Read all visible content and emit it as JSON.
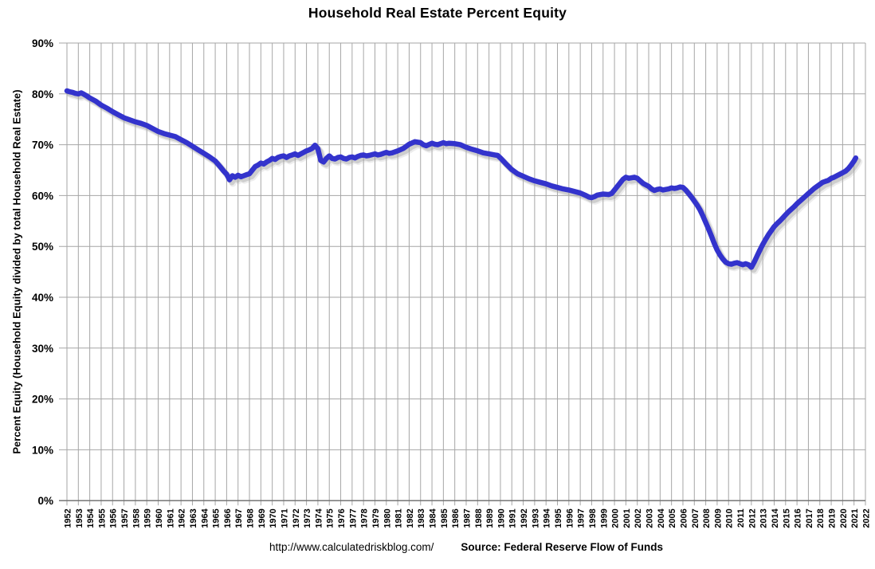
{
  "footer": {
    "url": "http://www.calculatedriskblog.com/",
    "source": "Source: Federal Reserve Flow of Funds"
  },
  "colors": {
    "line": "#3333CC",
    "shadow": "#9A9A9A",
    "grid": "#A6A6A6",
    "axis": "#6E6E6E",
    "text": "#000000",
    "background": "#FFFFFF"
  },
  "chart_data": {
    "type": "line",
    "title": "Household Real Estate Percent Equity",
    "xlabel": "",
    "ylabel": "Percent Equity (Household Equity divided by total Household Real Estate)",
    "xlim": [
      1952,
      2022
    ],
    "ylim": [
      0,
      90
    ],
    "grid": true,
    "legend_position": "none",
    "x_ticks": [
      1952,
      1953,
      1954,
      1955,
      1956,
      1957,
      1958,
      1959,
      1960,
      1961,
      1962,
      1963,
      1964,
      1965,
      1966,
      1967,
      1968,
      1969,
      1970,
      1971,
      1972,
      1973,
      1974,
      1975,
      1976,
      1977,
      1978,
      1979,
      1980,
      1981,
      1982,
      1983,
      1984,
      1985,
      1986,
      1987,
      1988,
      1989,
      1990,
      1991,
      1992,
      1993,
      1994,
      1995,
      1996,
      1997,
      1998,
      1999,
      2000,
      2001,
      2002,
      2003,
      2004,
      2005,
      2006,
      2007,
      2008,
      2009,
      2010,
      2011,
      2012,
      2013,
      2014,
      2015,
      2016,
      2017,
      2018,
      2019,
      2020,
      2021,
      2022
    ],
    "y_ticks": [
      {
        "value": 0,
        "label": "0%"
      },
      {
        "value": 10,
        "label": "10%"
      },
      {
        "value": 20,
        "label": "20%"
      },
      {
        "value": 30,
        "label": "30%"
      },
      {
        "value": 40,
        "label": "40%"
      },
      {
        "value": 50,
        "label": "50%"
      },
      {
        "value": 60,
        "label": "60%"
      },
      {
        "value": 70,
        "label": "70%"
      },
      {
        "value": 80,
        "label": "80%"
      },
      {
        "value": 90,
        "label": "90%"
      }
    ],
    "series": [
      {
        "name": "Household Real Estate Percent Equity",
        "color": "#3333CC",
        "points": [
          [
            1952.0,
            80.6
          ],
          [
            1952.25,
            80.4
          ],
          [
            1952.5,
            80.3
          ],
          [
            1952.75,
            80.1
          ],
          [
            1953.0,
            80.0
          ],
          [
            1953.25,
            80.2
          ],
          [
            1953.5,
            79.9
          ],
          [
            1953.75,
            79.6
          ],
          [
            1954.0,
            79.2
          ],
          [
            1954.5,
            78.6
          ],
          [
            1955.0,
            77.8
          ],
          [
            1955.5,
            77.2
          ],
          [
            1956.0,
            76.5
          ],
          [
            1956.5,
            75.9
          ],
          [
            1957.0,
            75.3
          ],
          [
            1957.5,
            74.9
          ],
          [
            1958.0,
            74.5
          ],
          [
            1958.5,
            74.2
          ],
          [
            1959.0,
            73.8
          ],
          [
            1959.5,
            73.2
          ],
          [
            1960.0,
            72.6
          ],
          [
            1960.5,
            72.2
          ],
          [
            1961.0,
            71.9
          ],
          [
            1961.5,
            71.6
          ],
          [
            1962.0,
            71.0
          ],
          [
            1962.5,
            70.4
          ],
          [
            1963.0,
            69.7
          ],
          [
            1963.5,
            69.0
          ],
          [
            1964.0,
            68.3
          ],
          [
            1964.5,
            67.6
          ],
          [
            1965.0,
            66.8
          ],
          [
            1965.5,
            65.5
          ],
          [
            1965.75,
            64.8
          ],
          [
            1966.0,
            64.2
          ],
          [
            1966.25,
            63.1
          ],
          [
            1966.5,
            63.9
          ],
          [
            1966.75,
            63.6
          ],
          [
            1967.0,
            64.0
          ],
          [
            1967.25,
            63.7
          ],
          [
            1967.5,
            63.9
          ],
          [
            1967.75,
            64.1
          ],
          [
            1968.0,
            64.3
          ],
          [
            1968.25,
            65.0
          ],
          [
            1968.5,
            65.7
          ],
          [
            1968.75,
            66.0
          ],
          [
            1969.0,
            66.4
          ],
          [
            1969.25,
            66.2
          ],
          [
            1969.5,
            66.6
          ],
          [
            1969.75,
            66.9
          ],
          [
            1970.0,
            67.3
          ],
          [
            1970.25,
            67.1
          ],
          [
            1970.5,
            67.5
          ],
          [
            1970.75,
            67.7
          ],
          [
            1971.0,
            67.8
          ],
          [
            1971.25,
            67.5
          ],
          [
            1971.5,
            67.8
          ],
          [
            1971.75,
            68.0
          ],
          [
            1972.0,
            68.2
          ],
          [
            1972.25,
            67.9
          ],
          [
            1972.5,
            68.2
          ],
          [
            1972.75,
            68.5
          ],
          [
            1973.0,
            68.8
          ],
          [
            1973.25,
            69.0
          ],
          [
            1973.5,
            69.3
          ],
          [
            1973.75,
            69.9
          ],
          [
            1974.0,
            69.2
          ],
          [
            1974.25,
            66.9
          ],
          [
            1974.5,
            66.6
          ],
          [
            1974.75,
            67.3
          ],
          [
            1975.0,
            67.8
          ],
          [
            1975.25,
            67.3
          ],
          [
            1975.5,
            67.2
          ],
          [
            1975.75,
            67.5
          ],
          [
            1976.0,
            67.6
          ],
          [
            1976.25,
            67.3
          ],
          [
            1976.5,
            67.2
          ],
          [
            1976.75,
            67.5
          ],
          [
            1977.0,
            67.6
          ],
          [
            1977.25,
            67.4
          ],
          [
            1977.5,
            67.7
          ],
          [
            1977.75,
            67.9
          ],
          [
            1978.0,
            68.0
          ],
          [
            1978.25,
            67.8
          ],
          [
            1978.5,
            67.9
          ],
          [
            1979.0,
            68.2
          ],
          [
            1979.25,
            68.0
          ],
          [
            1979.5,
            68.1
          ],
          [
            1980.0,
            68.5
          ],
          [
            1980.25,
            68.3
          ],
          [
            1980.5,
            68.4
          ],
          [
            1981.0,
            68.8
          ],
          [
            1981.5,
            69.3
          ],
          [
            1982.0,
            70.1
          ],
          [
            1982.5,
            70.6
          ],
          [
            1983.0,
            70.4
          ],
          [
            1983.25,
            70.0
          ],
          [
            1983.5,
            69.8
          ],
          [
            1984.0,
            70.3
          ],
          [
            1984.25,
            70.1
          ],
          [
            1984.5,
            70.0
          ],
          [
            1985.0,
            70.4
          ],
          [
            1985.25,
            70.2
          ],
          [
            1985.5,
            70.3
          ],
          [
            1986.0,
            70.2
          ],
          [
            1986.5,
            70.0
          ],
          [
            1987.0,
            69.5
          ],
          [
            1987.5,
            69.1
          ],
          [
            1988.0,
            68.8
          ],
          [
            1988.5,
            68.4
          ],
          [
            1989.0,
            68.2
          ],
          [
            1989.5,
            68.0
          ],
          [
            1989.75,
            67.9
          ],
          [
            1990.0,
            67.4
          ],
          [
            1990.5,
            66.2
          ],
          [
            1991.0,
            65.1
          ],
          [
            1991.5,
            64.3
          ],
          [
            1992.0,
            63.8
          ],
          [
            1992.5,
            63.3
          ],
          [
            1993.0,
            62.9
          ],
          [
            1993.5,
            62.6
          ],
          [
            1994.0,
            62.3
          ],
          [
            1994.5,
            61.9
          ],
          [
            1995.0,
            61.6
          ],
          [
            1995.5,
            61.3
          ],
          [
            1996.0,
            61.1
          ],
          [
            1996.5,
            60.8
          ],
          [
            1997.0,
            60.5
          ],
          [
            1997.5,
            60.0
          ],
          [
            1997.75,
            59.7
          ],
          [
            1998.0,
            59.6
          ],
          [
            1998.25,
            59.8
          ],
          [
            1998.5,
            60.1
          ],
          [
            1999.0,
            60.3
          ],
          [
            1999.5,
            60.2
          ],
          [
            1999.75,
            60.4
          ],
          [
            2000.0,
            61.1
          ],
          [
            2000.5,
            62.5
          ],
          [
            2000.75,
            63.2
          ],
          [
            2001.0,
            63.6
          ],
          [
            2001.25,
            63.4
          ],
          [
            2001.5,
            63.5
          ],
          [
            2001.75,
            63.6
          ],
          [
            2002.0,
            63.4
          ],
          [
            2002.25,
            62.9
          ],
          [
            2002.5,
            62.4
          ],
          [
            2003.0,
            61.8
          ],
          [
            2003.25,
            61.3
          ],
          [
            2003.5,
            61.0
          ],
          [
            2003.75,
            61.2
          ],
          [
            2004.0,
            61.3
          ],
          [
            2004.25,
            61.1
          ],
          [
            2004.5,
            61.2
          ],
          [
            2004.75,
            61.3
          ],
          [
            2005.0,
            61.5
          ],
          [
            2005.25,
            61.4
          ],
          [
            2005.5,
            61.5
          ],
          [
            2005.75,
            61.7
          ],
          [
            2006.0,
            61.6
          ],
          [
            2006.25,
            61.1
          ],
          [
            2006.5,
            60.4
          ],
          [
            2006.75,
            59.7
          ],
          [
            2007.0,
            58.9
          ],
          [
            2007.25,
            58.1
          ],
          [
            2007.5,
            57.2
          ],
          [
            2007.75,
            56.0
          ],
          [
            2008.0,
            54.7
          ],
          [
            2008.25,
            53.4
          ],
          [
            2008.5,
            52.0
          ],
          [
            2008.75,
            50.6
          ],
          [
            2009.0,
            49.3
          ],
          [
            2009.25,
            48.3
          ],
          [
            2009.5,
            47.5
          ],
          [
            2009.75,
            46.9
          ],
          [
            2010.0,
            46.6
          ],
          [
            2010.25,
            46.5
          ],
          [
            2010.5,
            46.7
          ],
          [
            2010.75,
            46.8
          ],
          [
            2011.0,
            46.6
          ],
          [
            2011.25,
            46.4
          ],
          [
            2011.5,
            46.6
          ],
          [
            2011.75,
            46.4
          ],
          [
            2012.0,
            45.9
          ],
          [
            2012.25,
            46.9
          ],
          [
            2012.5,
            48.1
          ],
          [
            2012.75,
            49.3
          ],
          [
            2013.0,
            50.4
          ],
          [
            2013.25,
            51.4
          ],
          [
            2013.5,
            52.3
          ],
          [
            2013.75,
            53.1
          ],
          [
            2014.0,
            53.9
          ],
          [
            2014.25,
            54.5
          ],
          [
            2014.5,
            55.0
          ],
          [
            2014.75,
            55.6
          ],
          [
            2015.0,
            56.2
          ],
          [
            2015.25,
            56.8
          ],
          [
            2015.5,
            57.3
          ],
          [
            2015.75,
            57.8
          ],
          [
            2016.0,
            58.4
          ],
          [
            2016.25,
            58.9
          ],
          [
            2016.5,
            59.4
          ],
          [
            2016.75,
            59.9
          ],
          [
            2017.0,
            60.4
          ],
          [
            2017.25,
            60.9
          ],
          [
            2017.5,
            61.4
          ],
          [
            2017.75,
            61.8
          ],
          [
            2018.0,
            62.2
          ],
          [
            2018.25,
            62.6
          ],
          [
            2018.5,
            62.8
          ],
          [
            2018.75,
            63.0
          ],
          [
            2019.0,
            63.4
          ],
          [
            2019.25,
            63.6
          ],
          [
            2019.5,
            63.9
          ],
          [
            2019.75,
            64.2
          ],
          [
            2020.0,
            64.5
          ],
          [
            2020.25,
            64.8
          ],
          [
            2020.5,
            65.3
          ],
          [
            2020.75,
            66.0
          ],
          [
            2021.0,
            66.8
          ],
          [
            2021.15,
            67.4
          ]
        ]
      }
    ]
  }
}
